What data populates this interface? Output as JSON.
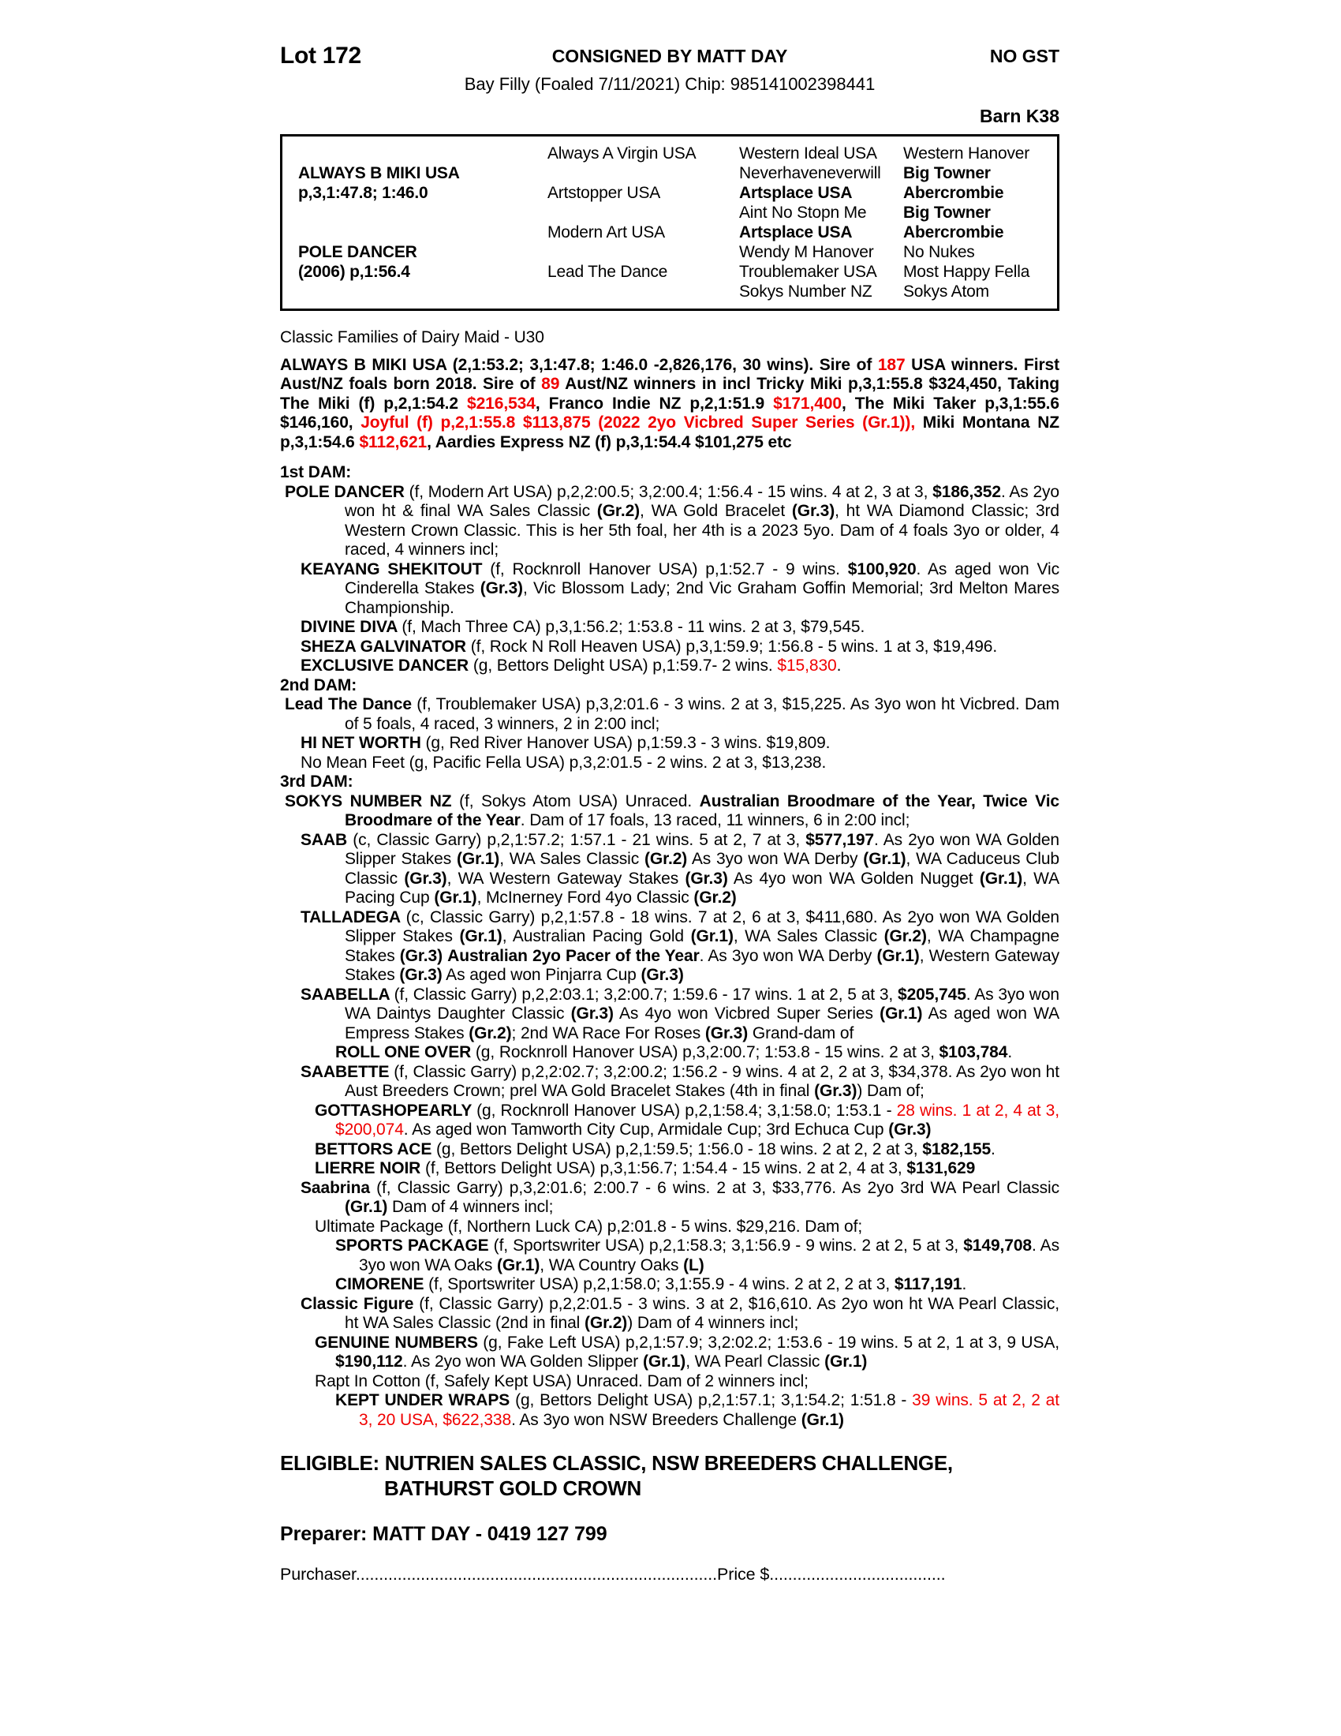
{
  "colors": {
    "accent_red": "#f00000",
    "ink": "#000000"
  },
  "header": {
    "lot": "Lot 172",
    "consigned": "CONSIGNED BY MATT DAY",
    "no_gst": "NO GST",
    "description": "Bay Filly (Foaled 7/11/2021) Chip: 985141002398441",
    "barn": "Barn K38"
  },
  "pedigree_table": {
    "rows": [
      [
        {
          "t": ""
        },
        {
          "t": "Always A Virgin USA"
        },
        {
          "t": "Western Ideal USA"
        },
        {
          "t": "Western Hanover"
        }
      ],
      [
        {
          "t": "ALWAYS B MIKI USA",
          "b": 1
        },
        {
          "t": ""
        },
        {
          "t": "Neverhaveneverwill"
        },
        {
          "t": "Big Towner",
          "b": 1
        }
      ],
      [
        {
          "t": "p,3,1:47.8; 1:46.0",
          "b": 1
        },
        {
          "t": "Artstopper USA"
        },
        {
          "t": "Artsplace USA",
          "b": 1
        },
        {
          "t": "Abercrombie",
          "b": 1
        }
      ],
      [
        {
          "t": ""
        },
        {
          "t": ""
        },
        {
          "t": "Aint No Stopn Me"
        },
        {
          "t": "Big Towner",
          "b": 1
        }
      ],
      [
        {
          "t": ""
        },
        {
          "t": "Modern Art USA"
        },
        {
          "t": "Artsplace USA",
          "b": 1
        },
        {
          "t": "Abercrombie",
          "b": 1
        }
      ],
      [
        {
          "t": "POLE DANCER",
          "b": 1
        },
        {
          "t": ""
        },
        {
          "t": "Wendy M Hanover"
        },
        {
          "t": "No Nukes"
        }
      ],
      [
        {
          "t": "(2006) p,1:56.4",
          "b": 1
        },
        {
          "t": "Lead The Dance"
        },
        {
          "t": "Troublemaker USA"
        },
        {
          "t": "Most Happy Fella"
        }
      ],
      [
        {
          "t": ""
        },
        {
          "t": ""
        },
        {
          "t": "Sokys Number NZ"
        },
        {
          "t": "Sokys Atom"
        }
      ]
    ]
  },
  "body": [
    {
      "name": "family-line",
      "cls": "family",
      "runs": [
        [
          "Classic Families of Dairy Maid - U30",
          "n"
        ]
      ]
    },
    {
      "name": "sire-summary",
      "cls": "sire",
      "runs": [
        [
          "ALWAYS B MIKI USA (2,1:53.2; 3,1:47.8; 1:46.0 -2,826,176, 30 wins). Sire of ",
          "b"
        ],
        [
          "187",
          "br"
        ],
        [
          " USA winners. First Aust/NZ foals born 2018. Sire of ",
          "b"
        ],
        [
          "89",
          "br"
        ],
        [
          " Aust/NZ winners in incl Tricky Miki p,3,1:55.8 $324,450, Taking The Miki (f) p,2,1:54.2 ",
          "b"
        ],
        [
          "$216,534",
          "br"
        ],
        [
          ", Franco Indie NZ p,2,1:51.9 ",
          "b"
        ],
        [
          "$171,400",
          "br"
        ],
        [
          ", The Miki Taker p,3,1:55.6 $146,160, ",
          "b"
        ],
        [
          "Joyful (f) p,2,1:55.8 $113,875 (2022 2yo Vicbred Super Series (Gr.1)),",
          "br"
        ],
        [
          " Miki Montana NZ p,3,1:54.6 ",
          "b"
        ],
        [
          "$112,621",
          "br"
        ],
        [
          ", Aardies Express NZ (f) p,3,1:54.4 $101,275 etc",
          "b"
        ]
      ]
    },
    {
      "name": "dam1-heading",
      "cls": "damhead gap",
      "runs": [
        [
          "1st DAM:",
          "b"
        ]
      ]
    },
    {
      "name": "dam1-pole-dancer",
      "cls": "lv1",
      "runs": [
        [
          "POLE DANCER ",
          "b"
        ],
        [
          "(f, Modern Art USA) p,2,2:00.5; 3,2:00.4; 1:56.4 - 15 wins. 4 at 2, 3 at 3, ",
          "n"
        ],
        [
          "$186,352",
          "b"
        ],
        [
          ". As 2yo won ht & final WA Sales Classic ",
          "n"
        ],
        [
          "(Gr.2)",
          "b"
        ],
        [
          ", WA Gold Bracelet ",
          "n"
        ],
        [
          "(Gr.3)",
          "b"
        ],
        [
          ", ht WA Diamond Classic; 3rd Western Crown Classic. This is her 5th foal, her 4th is a 2023 5yo. Dam of 4 foals 3yo or older, 4 raced, 4 winners incl;",
          "n"
        ]
      ]
    },
    {
      "name": "entry-keayang-shekitout",
      "cls": "lv2",
      "runs": [
        [
          "KEAYANG SHEKITOUT ",
          "b"
        ],
        [
          "(f, Rocknroll Hanover USA) p,1:52.7 - 9 wins. ",
          "n"
        ],
        [
          "$100,920",
          "b"
        ],
        [
          ". As aged won Vic Cinderella Stakes ",
          "n"
        ],
        [
          "(Gr.3)",
          "b"
        ],
        [
          ", Vic Blossom Lady; 2nd Vic Graham Goffin Memorial; 3rd Melton Mares Championship.",
          "n"
        ]
      ]
    },
    {
      "name": "entry-divine-diva",
      "cls": "lv2",
      "runs": [
        [
          "DIVINE DIVA ",
          "b"
        ],
        [
          "(f, Mach Three CA) p,3,1:56.2; 1:53.8 - 11 wins. 2 at 3, $79,545.",
          "n"
        ]
      ]
    },
    {
      "name": "entry-sheza-galvinator",
      "cls": "lv2",
      "runs": [
        [
          "SHEZA GALVINATOR ",
          "b"
        ],
        [
          "(f, Rock N Roll Heaven USA) p,3,1:59.9; 1:56.8 - 5 wins. 1 at 3, $19,496.",
          "n"
        ]
      ]
    },
    {
      "name": "entry-exclusive-dancer",
      "cls": "lv2",
      "runs": [
        [
          "EXCLUSIVE DANCER ",
          "b"
        ],
        [
          "(g, Bettors Delight USA) p,1:59.7- 2 wins. ",
          "n"
        ],
        [
          "$15,830",
          "r"
        ],
        [
          ".",
          "n"
        ]
      ]
    },
    {
      "name": "dam2-heading",
      "cls": "damhead",
      "runs": [
        [
          "2nd DAM:",
          "b"
        ]
      ]
    },
    {
      "name": "dam2-lead-the-dance",
      "cls": "lv1",
      "runs": [
        [
          "Lead The Dance ",
          "b"
        ],
        [
          "(f, Troublemaker USA) p,3,2:01.6 - 3 wins. 2 at 3, $15,225. As 3yo won ht Vicbred. Dam of 5 foals, 4 raced, 3 winners, 2 in 2:00 incl;",
          "n"
        ]
      ]
    },
    {
      "name": "entry-hi-net-worth",
      "cls": "lv2",
      "runs": [
        [
          "HI NET WORTH ",
          "b"
        ],
        [
          "(g, Red River Hanover USA) p,1:59.3 - 3 wins. $19,809.",
          "n"
        ]
      ]
    },
    {
      "name": "entry-no-mean-feet",
      "cls": "lv2",
      "runs": [
        [
          "No Mean Feet (g, Pacific Fella USA) p,3,2:01.5 - 2 wins. 2 at 3, $13,238.",
          "n"
        ]
      ]
    },
    {
      "name": "dam3-heading",
      "cls": "damhead",
      "runs": [
        [
          "3rd DAM:",
          "b"
        ]
      ]
    },
    {
      "name": "dam3-sokys-number",
      "cls": "lv1",
      "runs": [
        [
          "SOKYS NUMBER NZ ",
          "b"
        ],
        [
          "(f, Sokys Atom USA) Unraced. ",
          "n"
        ],
        [
          "Australian Broodmare of the Year, Twice Vic Broodmare of the Year",
          "b"
        ],
        [
          ". Dam of 17 foals, 13 raced, 11 winners, 6 in 2:00 incl;",
          "n"
        ]
      ]
    },
    {
      "name": "entry-saab",
      "cls": "lv2",
      "runs": [
        [
          "SAAB ",
          "b"
        ],
        [
          "(c, Classic Garry) p,2,1:57.2; 1:57.1 - 21 wins. 5 at 2, 7 at 3, ",
          "n"
        ],
        [
          "$577,197",
          "b"
        ],
        [
          ". As 2yo won WA Golden Slipper Stakes ",
          "n"
        ],
        [
          "(Gr.1)",
          "b"
        ],
        [
          ", WA Sales Classic ",
          "n"
        ],
        [
          "(Gr.2)",
          "b"
        ],
        [
          " As 3yo won WA Derby ",
          "n"
        ],
        [
          "(Gr.1)",
          "b"
        ],
        [
          ", WA Caduceus Club Classic ",
          "n"
        ],
        [
          "(Gr.3)",
          "b"
        ],
        [
          ", WA Western Gateway Stakes ",
          "n"
        ],
        [
          "(Gr.3)",
          "b"
        ],
        [
          " As 4yo won WA Golden Nugget ",
          "n"
        ],
        [
          "(Gr.1)",
          "b"
        ],
        [
          ", WA Pacing Cup ",
          "n"
        ],
        [
          "(Gr.1)",
          "b"
        ],
        [
          ", McInerney Ford 4yo Classic ",
          "n"
        ],
        [
          "(Gr.2)",
          "b"
        ]
      ]
    },
    {
      "name": "entry-talladega",
      "cls": "lv2",
      "runs": [
        [
          "TALLADEGA ",
          "b"
        ],
        [
          "(c, Classic Garry) p,2,1:57.8 - 18 wins. 7 at 2, 6 at 3, $411,680. As 2yo won WA Golden Slipper Stakes ",
          "n"
        ],
        [
          "(Gr.1)",
          "b"
        ],
        [
          ", Australian Pacing Gold ",
          "n"
        ],
        [
          "(Gr.1)",
          "b"
        ],
        [
          ", WA Sales Classic ",
          "n"
        ],
        [
          "(Gr.2)",
          "b"
        ],
        [
          ", WA Champagne Stakes ",
          "n"
        ],
        [
          "(Gr.3)",
          "b"
        ],
        [
          " ",
          "n"
        ],
        [
          "Australian 2yo Pacer of the Year",
          "b"
        ],
        [
          ". As 3yo won WA Derby ",
          "n"
        ],
        [
          "(Gr.1)",
          "b"
        ],
        [
          ", Western Gateway Stakes ",
          "n"
        ],
        [
          "(Gr.3)",
          "b"
        ],
        [
          " As aged won Pinjarra Cup ",
          "n"
        ],
        [
          "(Gr.3)",
          "b"
        ]
      ]
    },
    {
      "name": "entry-saabella",
      "cls": "lv2",
      "runs": [
        [
          "SAABELLA ",
          "b"
        ],
        [
          "(f, Classic Garry) p,2,2:03.1; 3,2:00.7; 1:59.6 - 17 wins. 1 at 2, 5 at 3, ",
          "n"
        ],
        [
          "$205,745",
          "b"
        ],
        [
          ". As 3yo won WA Daintys Daughter Classic ",
          "n"
        ],
        [
          "(Gr.3)",
          "b"
        ],
        [
          " As 4yo won Vicbred Super Series ",
          "n"
        ],
        [
          "(Gr.1)",
          "b"
        ],
        [
          " As aged won WA Empress Stakes ",
          "n"
        ],
        [
          "(Gr.2)",
          "b"
        ],
        [
          "; 2nd WA Race For Roses ",
          "n"
        ],
        [
          "(Gr.3)",
          "b"
        ],
        [
          " Grand-dam of",
          "n"
        ]
      ]
    },
    {
      "name": "entry-roll-one-over",
      "cls": "lv4",
      "runs": [
        [
          "ROLL ONE OVER ",
          "b"
        ],
        [
          "(g, Rocknroll Hanover USA) p,3,2:00.7; 1:53.8 - 15 wins. 2 at 3, ",
          "n"
        ],
        [
          "$103,784",
          "b"
        ],
        [
          ".",
          "n"
        ]
      ]
    },
    {
      "name": "entry-saabette",
      "cls": "lv2",
      "runs": [
        [
          "SAABETTE ",
          "b"
        ],
        [
          "(f, Classic Garry) p,2,2:02.7; 3,2:00.2; 1:56.2 - 9 wins. 4 at 2, 2 at 3, $34,378. As 2yo won ht Aust Breeders Crown; prel WA Gold Bracelet Stakes (4th in final ",
          "n"
        ],
        [
          "(Gr.3)",
          "b"
        ],
        [
          ") Dam of;",
          "n"
        ]
      ]
    },
    {
      "name": "entry-gottashopearly",
      "cls": "lv3",
      "runs": [
        [
          "GOTTASHOPEARLY ",
          "b"
        ],
        [
          "(g, Rocknroll Hanover USA) p,2,1:58.4; 3,1:58.0; 1:53.1 - ",
          "n"
        ],
        [
          "28 wins. 1 at 2, 4 at 3, $200,074",
          "r"
        ],
        [
          ". As aged won Tamworth City Cup, Armidale Cup; 3rd Echuca Cup ",
          "n"
        ],
        [
          "(Gr.3)",
          "b"
        ]
      ]
    },
    {
      "name": "entry-bettors-ace",
      "cls": "lv3",
      "runs": [
        [
          "BETTORS ACE ",
          "b"
        ],
        [
          "(g, Bettors Delight USA) p,2,1:59.5; 1:56.0 - 18 wins. 2 at 2, 2 at 3, ",
          "n"
        ],
        [
          "$182,155",
          "b"
        ],
        [
          ".",
          "n"
        ]
      ]
    },
    {
      "name": "entry-lierre-noir",
      "cls": "lv3",
      "runs": [
        [
          "LIERRE NOIR ",
          "b"
        ],
        [
          "(f, Bettors Delight USA) p,3,1:56.7; 1:54.4 - 15 wins. 2 at 2, 4 at 3, ",
          "n"
        ],
        [
          "$131,629",
          "b"
        ]
      ]
    },
    {
      "name": "entry-saabrina",
      "cls": "lv2",
      "runs": [
        [
          "Saabrina ",
          "b"
        ],
        [
          "(f, Classic Garry) p,3,2:01.6; 2:00.7 - 6 wins. 2 at 3, $33,776. As 2yo 3rd WA Pearl Classic ",
          "n"
        ],
        [
          "(Gr.1)",
          "b"
        ],
        [
          " Dam of 4 winners incl;",
          "n"
        ]
      ]
    },
    {
      "name": "entry-ultimate-package",
      "cls": "lv3",
      "runs": [
        [
          "Ultimate Package (f, Northern Luck CA) p,2:01.8 - 5 wins. $29,216. Dam of;",
          "n"
        ]
      ]
    },
    {
      "name": "entry-sports-package",
      "cls": "lv4",
      "runs": [
        [
          "SPORTS PACKAGE ",
          "b"
        ],
        [
          "(f, Sportswriter USA) p,2,1:58.3; 3,1:56.9 - 9 wins. 2 at 2, 5 at 3, ",
          "n"
        ],
        [
          "$149,708",
          "b"
        ],
        [
          ". As 3yo won WA Oaks ",
          "n"
        ],
        [
          "(Gr.1)",
          "b"
        ],
        [
          ", WA Country Oaks ",
          "n"
        ],
        [
          "(L)",
          "b"
        ]
      ]
    },
    {
      "name": "entry-cimorene",
      "cls": "lv4",
      "runs": [
        [
          "CIMORENE ",
          "b"
        ],
        [
          "(f, Sportswriter USA) p,2,1:58.0; 3,1:55.9 - 4 wins. 2 at 2, 2 at 3, ",
          "n"
        ],
        [
          "$117,191",
          "b"
        ],
        [
          ".",
          "n"
        ]
      ]
    },
    {
      "name": "entry-classic-figure",
      "cls": "lv2",
      "runs": [
        [
          "Classic Figure ",
          "b"
        ],
        [
          "(f, Classic Garry) p,2,2:01.5 - 3 wins. 3 at 2, $16,610. As 2yo won ht WA Pearl Classic, ht WA Sales Classic (2nd in final ",
          "n"
        ],
        [
          "(Gr.2)",
          "b"
        ],
        [
          ") Dam of 4 winners incl;",
          "n"
        ]
      ]
    },
    {
      "name": "entry-genuine-numbers",
      "cls": "lv3",
      "runs": [
        [
          "GENUINE NUMBERS ",
          "b"
        ],
        [
          "(g, Fake Left USA) p,2,1:57.9; 3,2:02.2; 1:53.6 - 19 wins. 5 at 2, 1 at 3, 9 USA, ",
          "n"
        ],
        [
          "$190,112",
          "b"
        ],
        [
          ". As 2yo won WA Golden Slipper ",
          "n"
        ],
        [
          "(Gr.1)",
          "b"
        ],
        [
          ", WA Pearl Classic ",
          "n"
        ],
        [
          "(Gr.1)",
          "b"
        ]
      ]
    },
    {
      "name": "entry-rapt-in-cotton",
      "cls": "lv3",
      "runs": [
        [
          "Rapt In Cotton (f, Safely Kept USA) Unraced. Dam of 2 winners incl;",
          "n"
        ]
      ]
    },
    {
      "name": "entry-kept-under-wraps",
      "cls": "lv4",
      "runs": [
        [
          "KEPT UNDER WRAPS ",
          "b"
        ],
        [
          "(g, Bettors Delight USA) p,2,1:57.1; 3,1:54.2; 1:51.8 - ",
          "n"
        ],
        [
          "39 wins. 5 at 2, 2 at 3, 20 USA, $622,338",
          "r"
        ],
        [
          ". As 3yo won NSW Breeders Challenge ",
          "n"
        ],
        [
          "(Gr.1)",
          "b"
        ]
      ]
    },
    {
      "name": "eligibility-note",
      "cls": "eligible",
      "runs": [
        [
          "ELIGIBLE: NUTRIEN SALES CLASSIC, NSW BREEDERS CHALLENGE, BATHURST GOLD CROWN",
          "b"
        ]
      ]
    },
    {
      "name": "preparer-line",
      "cls": "preparer",
      "runs": [
        [
          "Preparer: MATT DAY - 0419 127 799",
          "b"
        ]
      ]
    },
    {
      "name": "purchaser-line",
      "cls": "purch",
      "runs": [
        [
          "Purchaser",
          "n"
        ],
        [
          "..............................................................................",
          "n"
        ],
        [
          "Price $",
          "n"
        ],
        [
          "......................................",
          "n"
        ]
      ]
    }
  ]
}
